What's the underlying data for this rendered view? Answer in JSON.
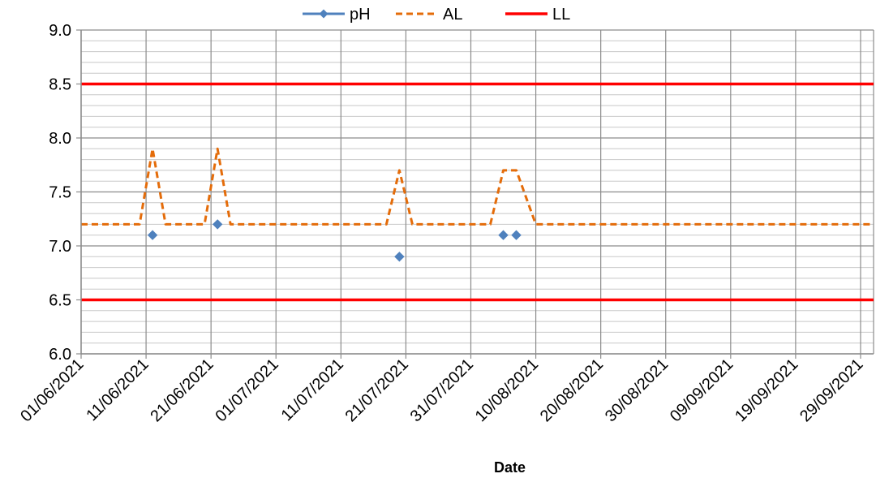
{
  "chart_data": {
    "type": "line",
    "title": "",
    "xlabel": "Date",
    "ylabel": "",
    "ylim": [
      6.0,
      9.0
    ],
    "y_ticks": [
      6.0,
      6.5,
      7.0,
      7.5,
      8.0,
      8.5,
      9.0
    ],
    "y_minor_step": 0.1,
    "xlim": [
      "01/06/2021",
      "01/10/2021"
    ],
    "x_ticks": [
      "01/06/2021",
      "11/06/2021",
      "21/06/2021",
      "01/07/2021",
      "11/07/2021",
      "21/07/2021",
      "31/07/2021",
      "10/08/2021",
      "20/08/2021",
      "30/08/2021",
      "09/09/2021",
      "19/09/2021",
      "29/09/2021"
    ],
    "grid": true,
    "legend_position": "top",
    "series": [
      {
        "name": "pH",
        "style": "markers",
        "color": "#4F81BD",
        "marker": "diamond",
        "points": [
          {
            "x": "12/06/2021",
            "y": 7.1
          },
          {
            "x": "22/06/2021",
            "y": 7.2
          },
          {
            "x": "20/07/2021",
            "y": 6.9
          },
          {
            "x": "05/08/2021",
            "y": 7.1
          },
          {
            "x": "07/08/2021",
            "y": 7.1
          }
        ]
      },
      {
        "name": "AL",
        "style": "dashed",
        "color": "#E46C0A",
        "points": [
          {
            "x": "01/06/2021",
            "y": 7.2
          },
          {
            "x": "10/06/2021",
            "y": 7.2
          },
          {
            "x": "12/06/2021",
            "y": 7.9
          },
          {
            "x": "14/06/2021",
            "y": 7.2
          },
          {
            "x": "20/06/2021",
            "y": 7.2
          },
          {
            "x": "22/06/2021",
            "y": 7.9
          },
          {
            "x": "24/06/2021",
            "y": 7.2
          },
          {
            "x": "18/07/2021",
            "y": 7.2
          },
          {
            "x": "20/07/2021",
            "y": 7.7
          },
          {
            "x": "22/07/2021",
            "y": 7.2
          },
          {
            "x": "03/08/2021",
            "y": 7.2
          },
          {
            "x": "05/08/2021",
            "y": 7.7
          },
          {
            "x": "07/08/2021",
            "y": 7.7
          },
          {
            "x": "10/08/2021",
            "y": 7.2
          },
          {
            "x": "01/10/2021",
            "y": 7.2
          }
        ]
      },
      {
        "name": "LL",
        "style": "solid",
        "color": "#FF0000",
        "segments": [
          [
            {
              "x": "01/06/2021",
              "y": 8.5
            },
            {
              "x": "01/10/2021",
              "y": 8.5
            }
          ],
          [
            {
              "x": "01/06/2021",
              "y": 6.5
            },
            {
              "x": "01/10/2021",
              "y": 6.5
            }
          ]
        ]
      }
    ]
  }
}
